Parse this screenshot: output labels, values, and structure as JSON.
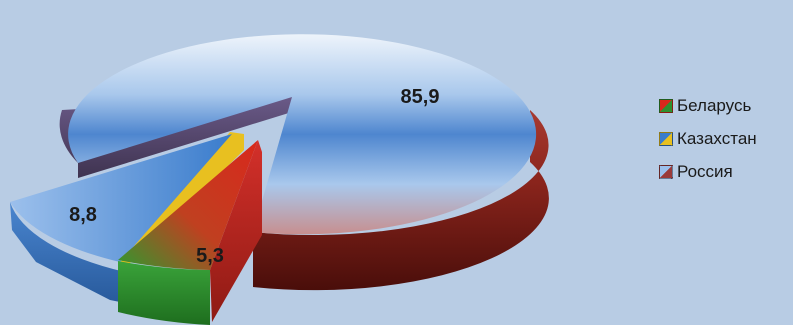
{
  "chart_data": {
    "type": "pie",
    "categories": [
      "Беларусь",
      "Казахстан",
      "Россия"
    ],
    "values": [
      5.3,
      8.8,
      85.9
    ],
    "value_labels": [
      "5,3",
      "8,8",
      "85,9"
    ],
    "legend_position": "right",
    "style": "3d-exploded",
    "colors": {
      "Беларусь": "#c0392b",
      "Беларусь_lower": "#2f8f2f",
      "Казахстан": "#3a7ccc",
      "Казахстан_inner": "#e8c020",
      "Россия": "#6fa3dc",
      "Россия_rim": "#7a1f18"
    }
  }
}
